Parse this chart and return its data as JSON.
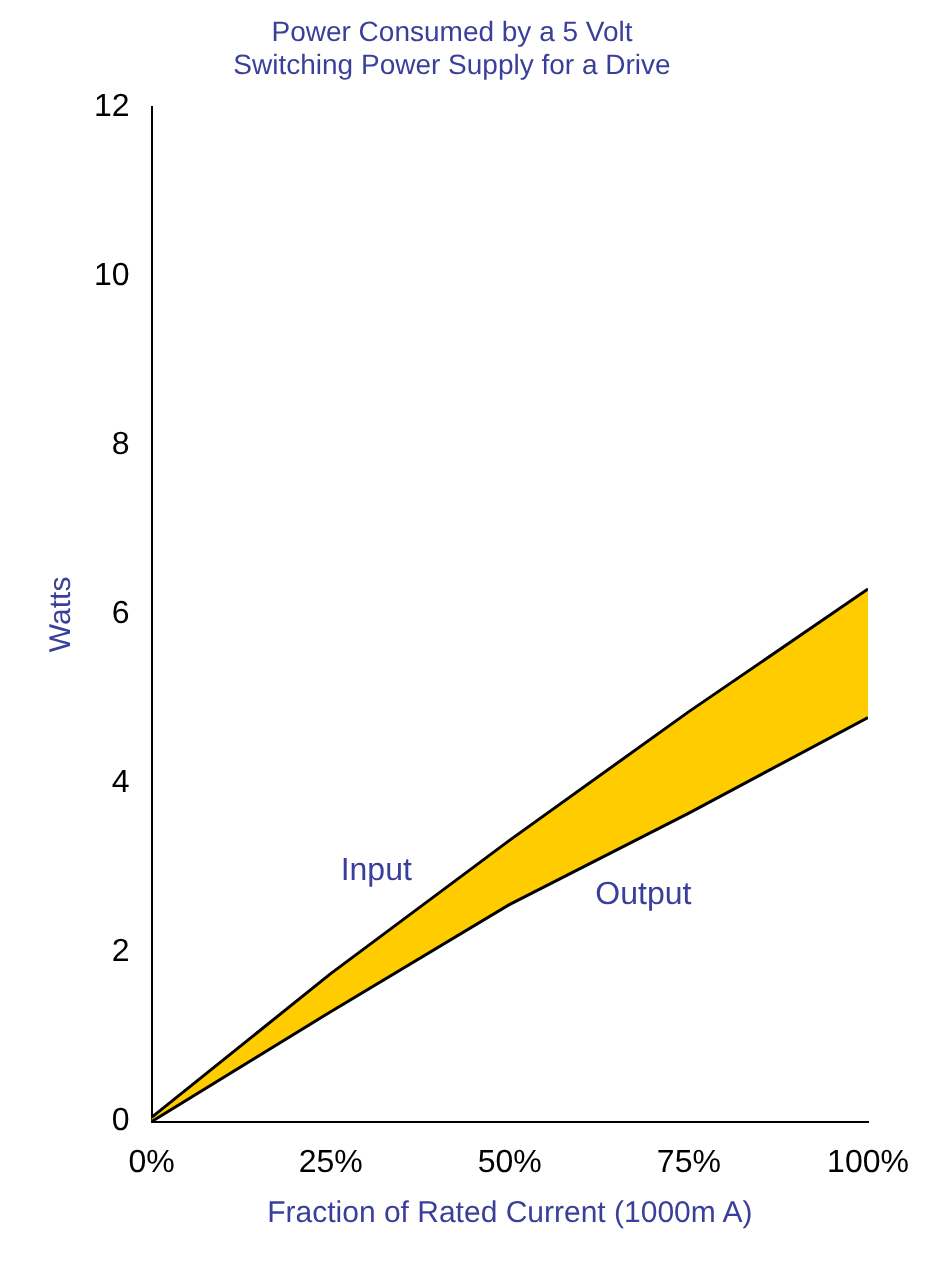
{
  "chart_data": {
    "type": "line",
    "title": "Power Consumed by a 5 Volt Switching Power Supply for a Drive",
    "xlabel": "Fraction of Rated Current (1000m A)",
    "ylabel": "Watts",
    "x": [
      0,
      25,
      50,
      75,
      100
    ],
    "series": [
      {
        "name": "Input",
        "type": "area",
        "color": "#ffcc00",
        "values": [
          0.05,
          1.75,
          3.33,
          4.85,
          6.3
        ]
      },
      {
        "name": "Output",
        "color": "#000000",
        "values": [
          0,
          1.3,
          2.57,
          3.65,
          4.78
        ]
      }
    ],
    "xlim": [
      0,
      100
    ],
    "xticks": [
      {
        "value": 0,
        "label": "0%"
      },
      {
        "value": 25,
        "label": "25%"
      },
      {
        "value": 50,
        "label": "50%"
      },
      {
        "value": 75,
        "label": "75%"
      },
      {
        "value": 100,
        "label": "100%"
      }
    ],
    "ylim": [
      0,
      12
    ],
    "yticks": [
      0,
      2,
      4,
      6,
      8,
      10,
      12
    ],
    "grid": false,
    "legend": false,
    "marker": "none",
    "line_style": "solid"
  }
}
